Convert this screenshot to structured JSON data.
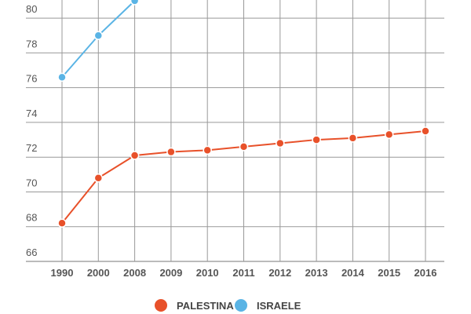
{
  "chart_data": {
    "type": "line",
    "title": "",
    "xlabel": "",
    "ylabel": "",
    "categories": [
      "1990",
      "2000",
      "2008",
      "2009",
      "2010",
      "2011",
      "2012",
      "2013",
      "2014",
      "2015",
      "2016"
    ],
    "y_ticks": [
      66,
      68,
      70,
      72,
      74,
      76,
      78,
      80
    ],
    "ylim": [
      66,
      81
    ],
    "grid": true,
    "legend_position": "bottom",
    "series": [
      {
        "name": "PALESTINA",
        "color": "#e8512a",
        "values": [
          68.2,
          70.8,
          72.1,
          72.3,
          72.4,
          72.6,
          72.8,
          73.0,
          73.1,
          73.3,
          73.5
        ]
      },
      {
        "name": "ISRAELE",
        "color": "#5ab4e5",
        "values": [
          76.6,
          79.0,
          81.0,
          null,
          null,
          null,
          null,
          null,
          null,
          null,
          null
        ]
      }
    ]
  }
}
